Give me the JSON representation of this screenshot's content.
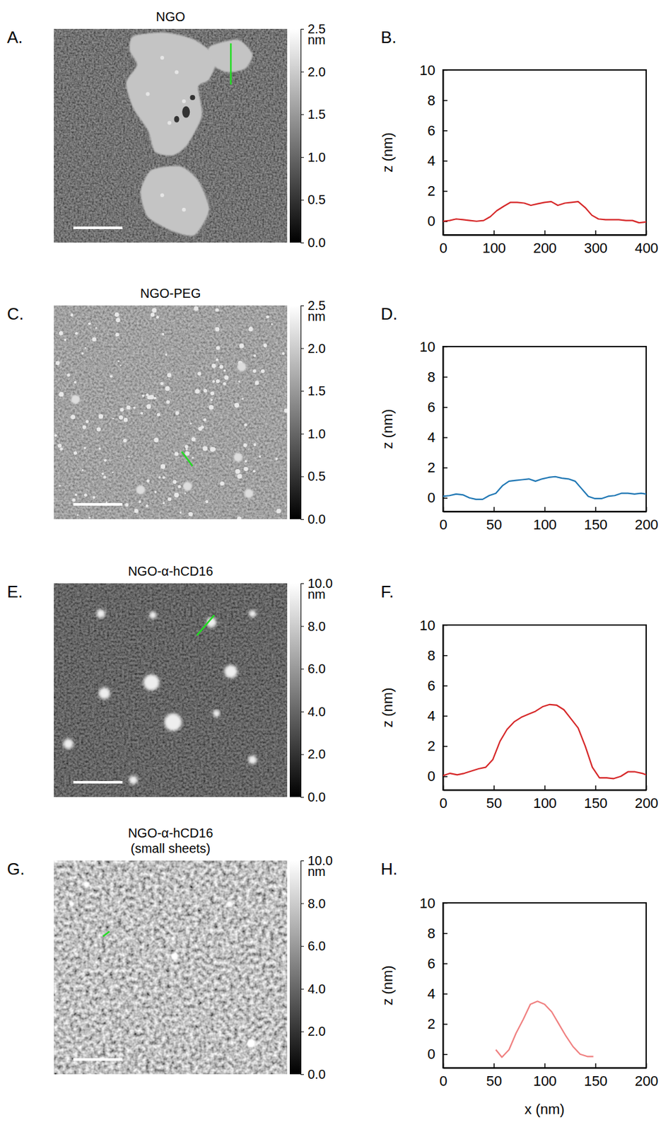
{
  "chart_data": [
    {
      "type": "image",
      "label": "A.",
      "title": "NGO",
      "colorbar": {
        "range": [
          0,
          2.5
        ],
        "ticks": [
          {
            "value": 0,
            "label": "0.0"
          },
          0.5,
          {
            "value": 1,
            "label": "1.0"
          },
          1.5,
          {
            "value": 2,
            "label": "2.0"
          },
          2.5
        ],
        "title": "nm"
      }
    },
    {
      "type": "line",
      "label": "B.",
      "ylabel": "z (nm)",
      "color": "#d62728",
      "xlim": [
        0,
        400
      ],
      "xticks": [
        0,
        100,
        200,
        300,
        400
      ],
      "ylim": [
        -0.9,
        10
      ],
      "yticks": [
        0,
        2,
        4,
        6,
        8,
        10
      ],
      "x": [
        0,
        13,
        26,
        40,
        53,
        66,
        80,
        93,
        106,
        120,
        133,
        146,
        160,
        173,
        186,
        200,
        213,
        226,
        240,
        253,
        266,
        280,
        293,
        306,
        320,
        333,
        346,
        360,
        373,
        386,
        400
      ],
      "values": [
        0,
        0.05,
        0.15,
        0.1,
        0.05,
        0,
        0.05,
        0.3,
        0.7,
        1.0,
        1.25,
        1.25,
        1.2,
        1.05,
        1.15,
        1.25,
        1.3,
        1.05,
        1.2,
        1.25,
        1.3,
        0.9,
        0.4,
        0.15,
        0.1,
        0.1,
        0.1,
        0.05,
        0.05,
        -0.1,
        -0.05
      ]
    },
    {
      "type": "image",
      "label": "C.",
      "title": "NGO-PEG",
      "colorbar": {
        "range": [
          0,
          2.5
        ],
        "ticks": [
          {
            "value": 0,
            "label": "0.0"
          },
          0.5,
          {
            "value": 1,
            "label": "1.0"
          },
          1.5,
          {
            "value": 2,
            "label": "2.0"
          },
          2.5
        ],
        "title": "nm"
      }
    },
    {
      "type": "line",
      "label": "D.",
      "ylabel": "z (nm)",
      "color": "#1f77b4",
      "xlim": [
        0,
        200
      ],
      "xticks": [
        0,
        50,
        100,
        150,
        200
      ],
      "ylim": [
        -0.9,
        10
      ],
      "yticks": [
        0,
        2,
        4,
        6,
        8,
        10
      ],
      "x": [
        0,
        6.5,
        13,
        19.5,
        26,
        32.5,
        39,
        45.5,
        52,
        58.5,
        65,
        71.5,
        78,
        84.5,
        91,
        97.5,
        104,
        110.5,
        117,
        123.5,
        130,
        136.5,
        143,
        149.5,
        156,
        162.5,
        169,
        175.5,
        182,
        188.5,
        195,
        200
      ],
      "values": [
        0.1,
        0.15,
        0.25,
        0.2,
        0,
        -0.1,
        -0.1,
        0.15,
        0.3,
        0.8,
        1.1,
        1.15,
        1.2,
        1.25,
        1.1,
        1.25,
        1.35,
        1.4,
        1.3,
        1.25,
        1.1,
        0.6,
        0.1,
        -0.05,
        -0.05,
        0.1,
        0.15,
        0.3,
        0.3,
        0.25,
        0.3,
        0.25
      ]
    },
    {
      "type": "image",
      "label": "E.",
      "title": "NGO-α-hCD16",
      "colorbar": {
        "range": [
          0,
          10
        ],
        "ticks": [
          {
            "value": 0,
            "label": "0.0"
          },
          {
            "value": 2,
            "label": "2.0"
          },
          {
            "value": 4,
            "label": "4.0"
          },
          {
            "value": 6,
            "label": "6.0"
          },
          {
            "value": 8,
            "label": "8.0"
          },
          {
            "value": 10,
            "label": "10.0"
          }
        ],
        "title": "nm"
      }
    },
    {
      "type": "line",
      "label": "F.",
      "ylabel": "z (nm)",
      "color": "#d62728",
      "xlim": [
        0,
        200
      ],
      "xticks": [
        0,
        50,
        100,
        150,
        200
      ],
      "ylim": [
        -0.9,
        10
      ],
      "yticks": [
        0,
        2,
        4,
        6,
        8,
        10
      ],
      "x": [
        0,
        7,
        14,
        21,
        28,
        35,
        42,
        49,
        56,
        63,
        70,
        77,
        84,
        91,
        98,
        105,
        112,
        119,
        126,
        133,
        140,
        147,
        154,
        161,
        168,
        175,
        182,
        189,
        196,
        200
      ],
      "values": [
        0.05,
        0.2,
        0.1,
        0.2,
        0.35,
        0.5,
        0.6,
        1.1,
        2.3,
        3.1,
        3.6,
        3.9,
        4.1,
        4.3,
        4.6,
        4.75,
        4.7,
        4.4,
        3.8,
        3.2,
        2.0,
        0.6,
        -0.1,
        -0.1,
        -0.15,
        0,
        0.3,
        0.3,
        0.2,
        0.1
      ]
    },
    {
      "type": "image",
      "label": "G.",
      "title": "NGO-α-hCD16 (small sheets)",
      "colorbar": {
        "range": [
          0,
          10
        ],
        "ticks": [
          {
            "value": 0,
            "label": "0.0"
          },
          {
            "value": 2,
            "label": "2.0"
          },
          {
            "value": 4,
            "label": "4.0"
          },
          {
            "value": 6,
            "label": "6.0"
          },
          {
            "value": 8,
            "label": "8.0"
          },
          {
            "value": 10,
            "label": "10.0"
          }
        ],
        "title": "nm"
      }
    },
    {
      "type": "line",
      "label": "H.",
      "ylabel": "z (nm)",
      "xlabel": "x (nm)",
      "color": "#f08080",
      "xlim": [
        0,
        200
      ],
      "xticks": [
        0,
        50,
        100,
        150,
        200
      ],
      "ylim": [
        -0.9,
        10
      ],
      "yticks": [
        0,
        2,
        4,
        6,
        8,
        10
      ],
      "x": [
        52,
        58,
        65,
        72,
        79,
        86,
        93,
        100,
        107,
        114,
        121,
        128,
        135,
        142,
        148
      ],
      "values": [
        0.3,
        -0.2,
        0.3,
        1.4,
        2.3,
        3.3,
        3.5,
        3.3,
        2.8,
        2.0,
        1.2,
        0.5,
        0,
        -0.15,
        -0.15
      ]
    }
  ]
}
